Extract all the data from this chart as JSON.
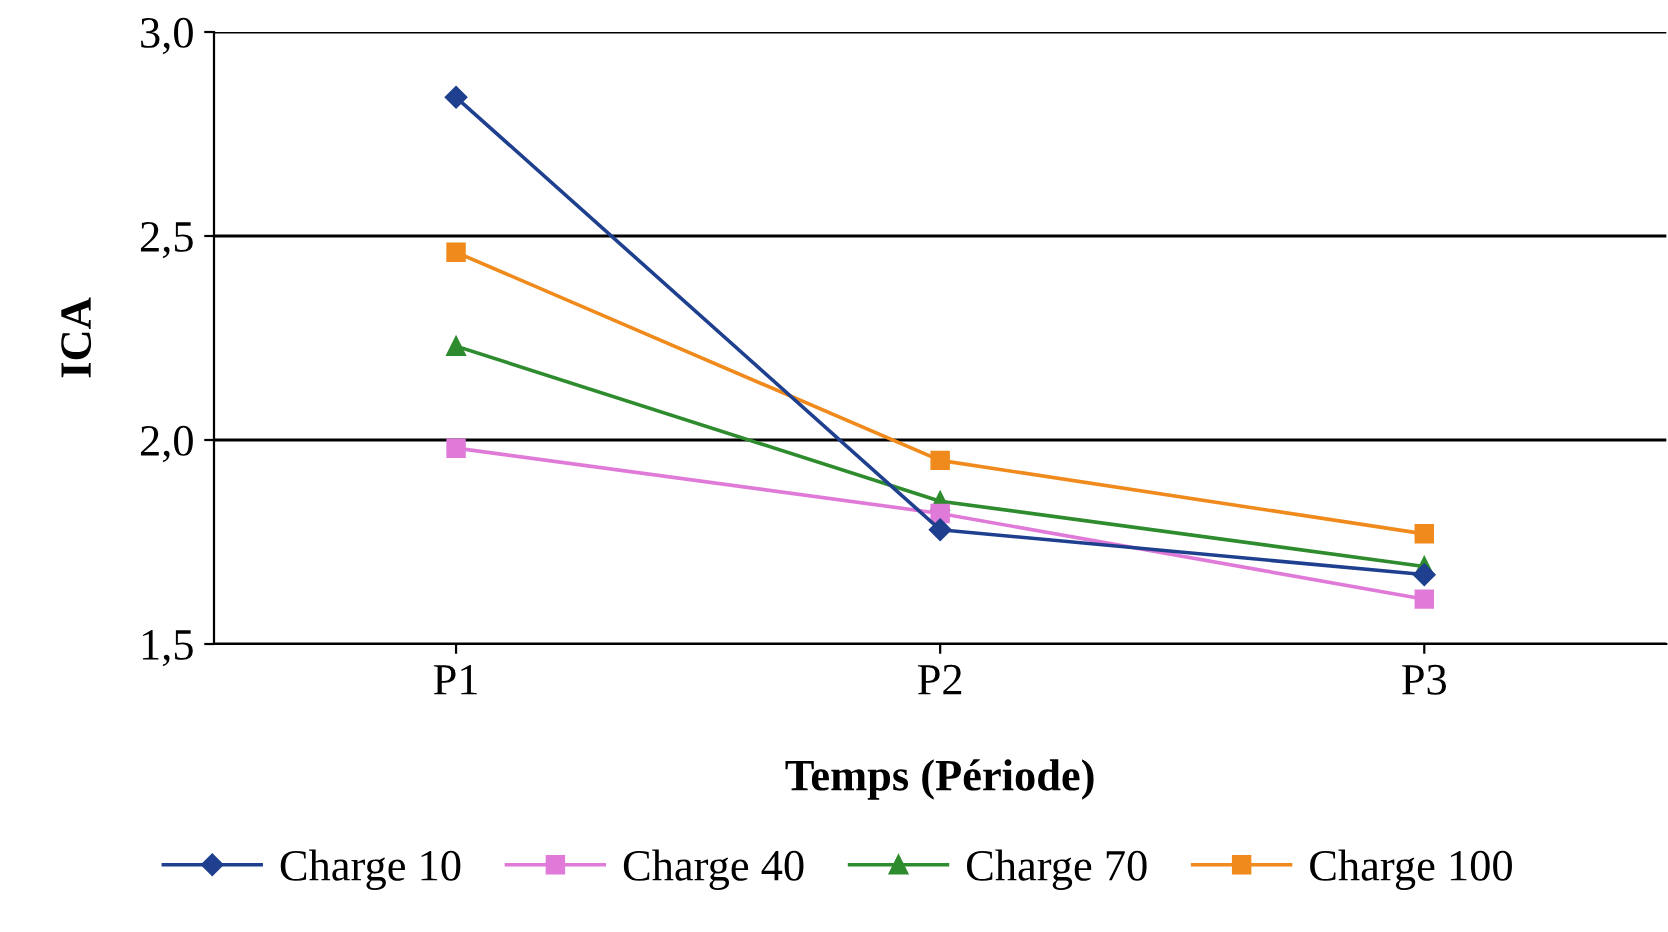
{
  "chart_data": {
    "type": "line",
    "xlabel": "Temps (Période)",
    "ylabel": "ICA",
    "categories": [
      "P1",
      "P2",
      "P3"
    ],
    "series": [
      {
        "name": "Charge 10",
        "color": "#1f3f8f",
        "marker": "diamond",
        "values": [
          2.84,
          1.78,
          1.67
        ]
      },
      {
        "name": "Charge 40",
        "color": "#e07ad8",
        "marker": "square",
        "values": [
          1.98,
          1.82,
          1.61
        ]
      },
      {
        "name": "Charge 70",
        "color": "#2e8b2e",
        "marker": "triangle",
        "values": [
          2.23,
          1.85,
          1.69
        ]
      },
      {
        "name": "Charge 100",
        "color": "#f08a1c",
        "marker": "square",
        "values": [
          2.46,
          1.95,
          1.77
        ]
      }
    ],
    "ylim": [
      1.5,
      3.0
    ],
    "yticks": [
      {
        "value": 1.5,
        "label": "1,5"
      },
      {
        "value": 2.0,
        "label": "2,0"
      },
      {
        "value": 2.5,
        "label": "2,5"
      },
      {
        "value": 3.0,
        "label": "3,0"
      }
    ],
    "grid": "y",
    "legend": "bottom",
    "line_style": "solid"
  }
}
